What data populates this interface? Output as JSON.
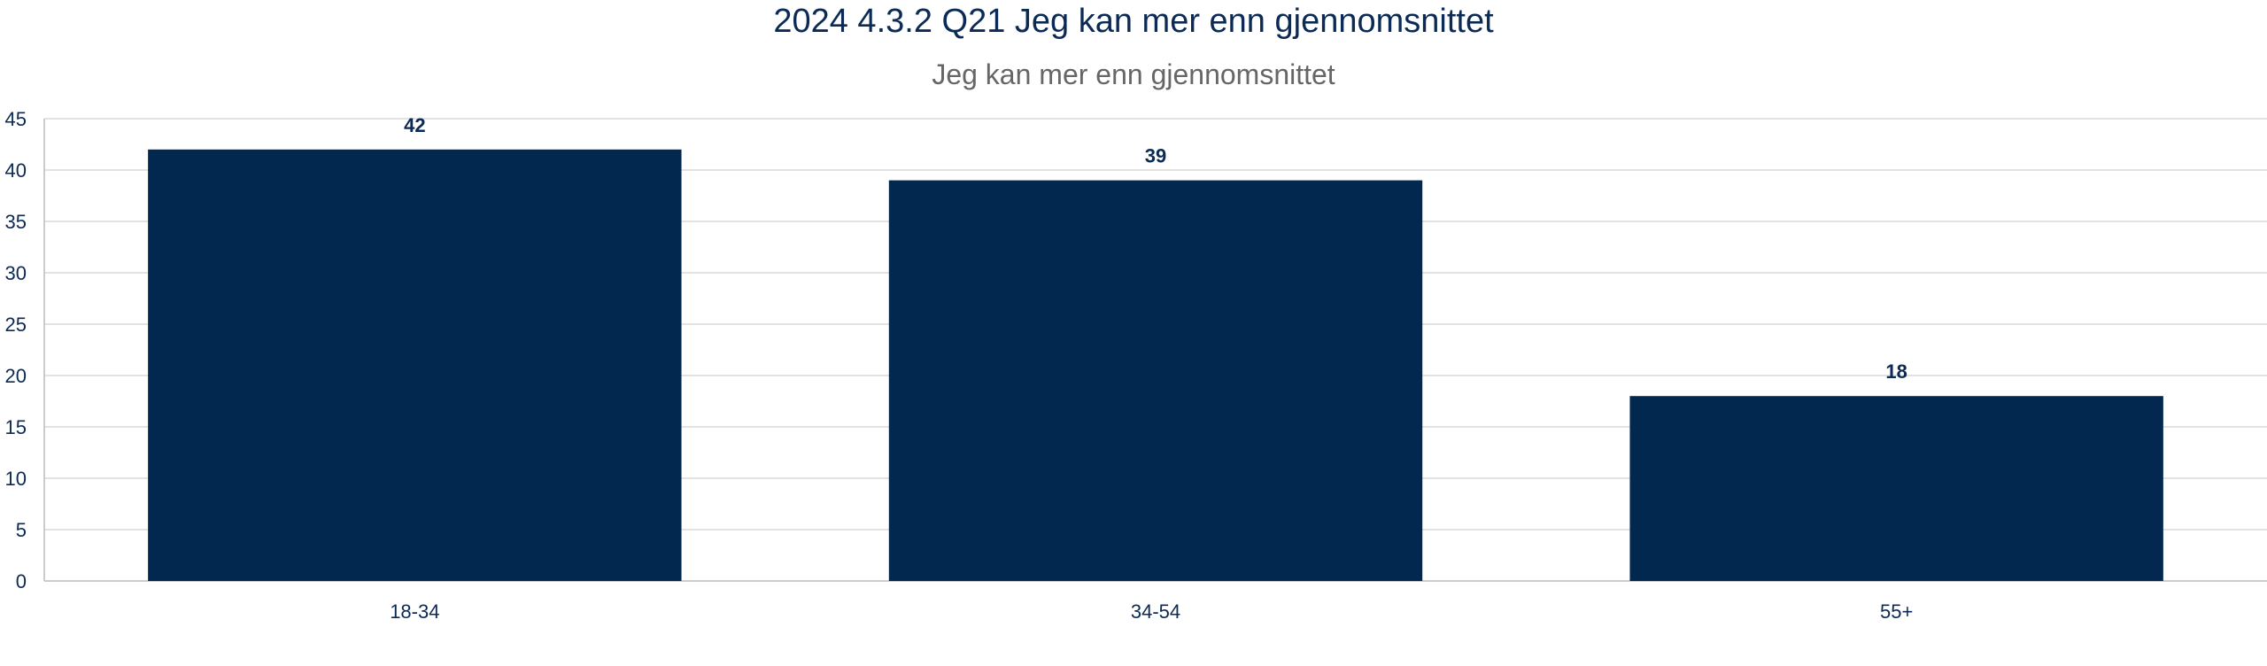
{
  "chart_data": {
    "type": "bar",
    "title": "2024 4.3.2 Q21 Jeg kan mer enn gjennomsnittet",
    "subtitle": "Jeg kan mer enn gjennomsnittet",
    "categories": [
      "18-34",
      "34-54",
      "55+"
    ],
    "values": [
      42,
      39,
      18
    ],
    "data_labels": [
      "42",
      "39",
      "18"
    ],
    "y_ticks": [
      "0",
      "5",
      "10",
      "15",
      "20",
      "25",
      "30",
      "35",
      "40",
      "45"
    ],
    "ylim": [
      0,
      45
    ],
    "grid": true,
    "legend": "none",
    "bar_color": "#03284f",
    "text_color": "#0b2a55",
    "subtitle_color": "#666666",
    "grid_color": "#d9d9d9"
  }
}
